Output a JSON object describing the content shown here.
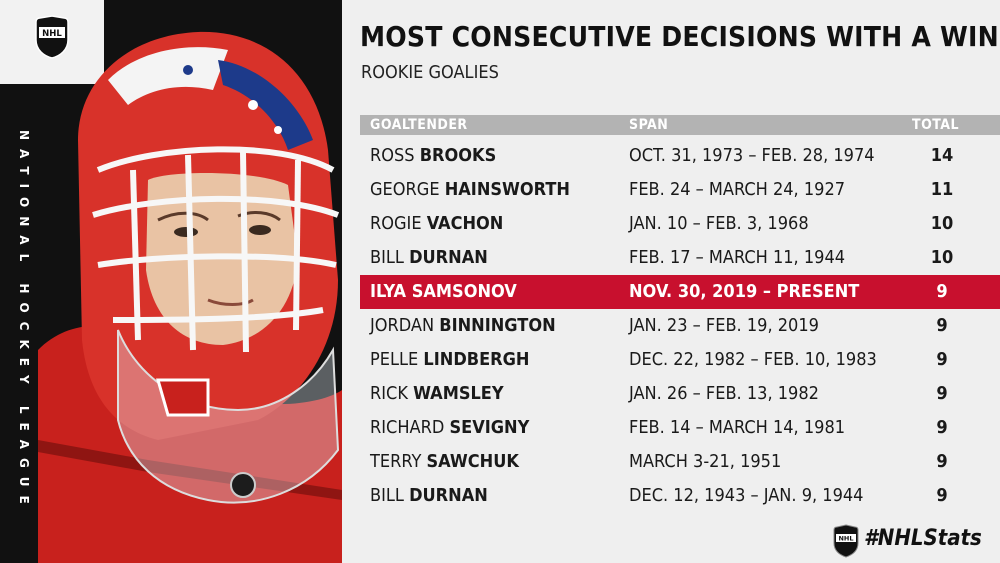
{
  "brand": {
    "logo_text": "NHL",
    "side_text": "NATIONAL HOCKEY LEAGUE",
    "hashtag": "#NHLStats"
  },
  "title": "MOST CONSECUTIVE DECISIONS WITH A WIN",
  "subtitle": "ROOKIE GOALIES",
  "table": {
    "headers": {
      "name": "GOALTENDER",
      "span": "SPAN",
      "total": "TOTAL"
    },
    "rows": [
      {
        "first": "ROSS",
        "last": "BROOKS",
        "span": "OCT. 31, 1973 – FEB. 28, 1974",
        "total": "14"
      },
      {
        "first": "GEORGE",
        "last": "HAINSWORTH",
        "span": "FEB. 24 – MARCH 24, 1927",
        "total": "11"
      },
      {
        "first": "ROGIE",
        "last": "VACHON",
        "span": "JAN. 10 – FEB. 3, 1968",
        "total": "10"
      },
      {
        "first": "BILL",
        "last": "DURNAN",
        "span": "FEB. 17 – MARCH 11, 1944",
        "total": "10"
      },
      {
        "first": "ILYA",
        "last": "SAMSONOV",
        "span": "NOV. 30, 2019 – PRESENT",
        "total": "9",
        "highlight": true
      },
      {
        "first": "JORDAN",
        "last": "BINNINGTON",
        "span": "JAN. 23 – FEB. 19, 2019",
        "total": "9"
      },
      {
        "first": "PELLE",
        "last": "LINDBERGH",
        "span": "DEC. 22, 1982 – FEB. 10, 1983",
        "total": "9"
      },
      {
        "first": "RICK",
        "last": "WAMSLEY",
        "span": "JAN. 26 – FEB. 13, 1982",
        "total": "9"
      },
      {
        "first": "RICHARD",
        "last": "SEVIGNY",
        "span": "FEB. 14 – MARCH 14, 1981",
        "total": "9"
      },
      {
        "first": "TERRY",
        "last": "SAWCHUK",
        "span": "MARCH 3-21, 1951",
        "total": "9"
      },
      {
        "first": "BILL",
        "last": "DURNAN",
        "span": "DEC. 12, 1943 – JAN. 9, 1944",
        "total": "9"
      }
    ]
  },
  "colors": {
    "highlight": "#c8102e",
    "header_bg": "#b3b3b3",
    "panel_bg": "#111111",
    "page_bg": "#efefef"
  }
}
